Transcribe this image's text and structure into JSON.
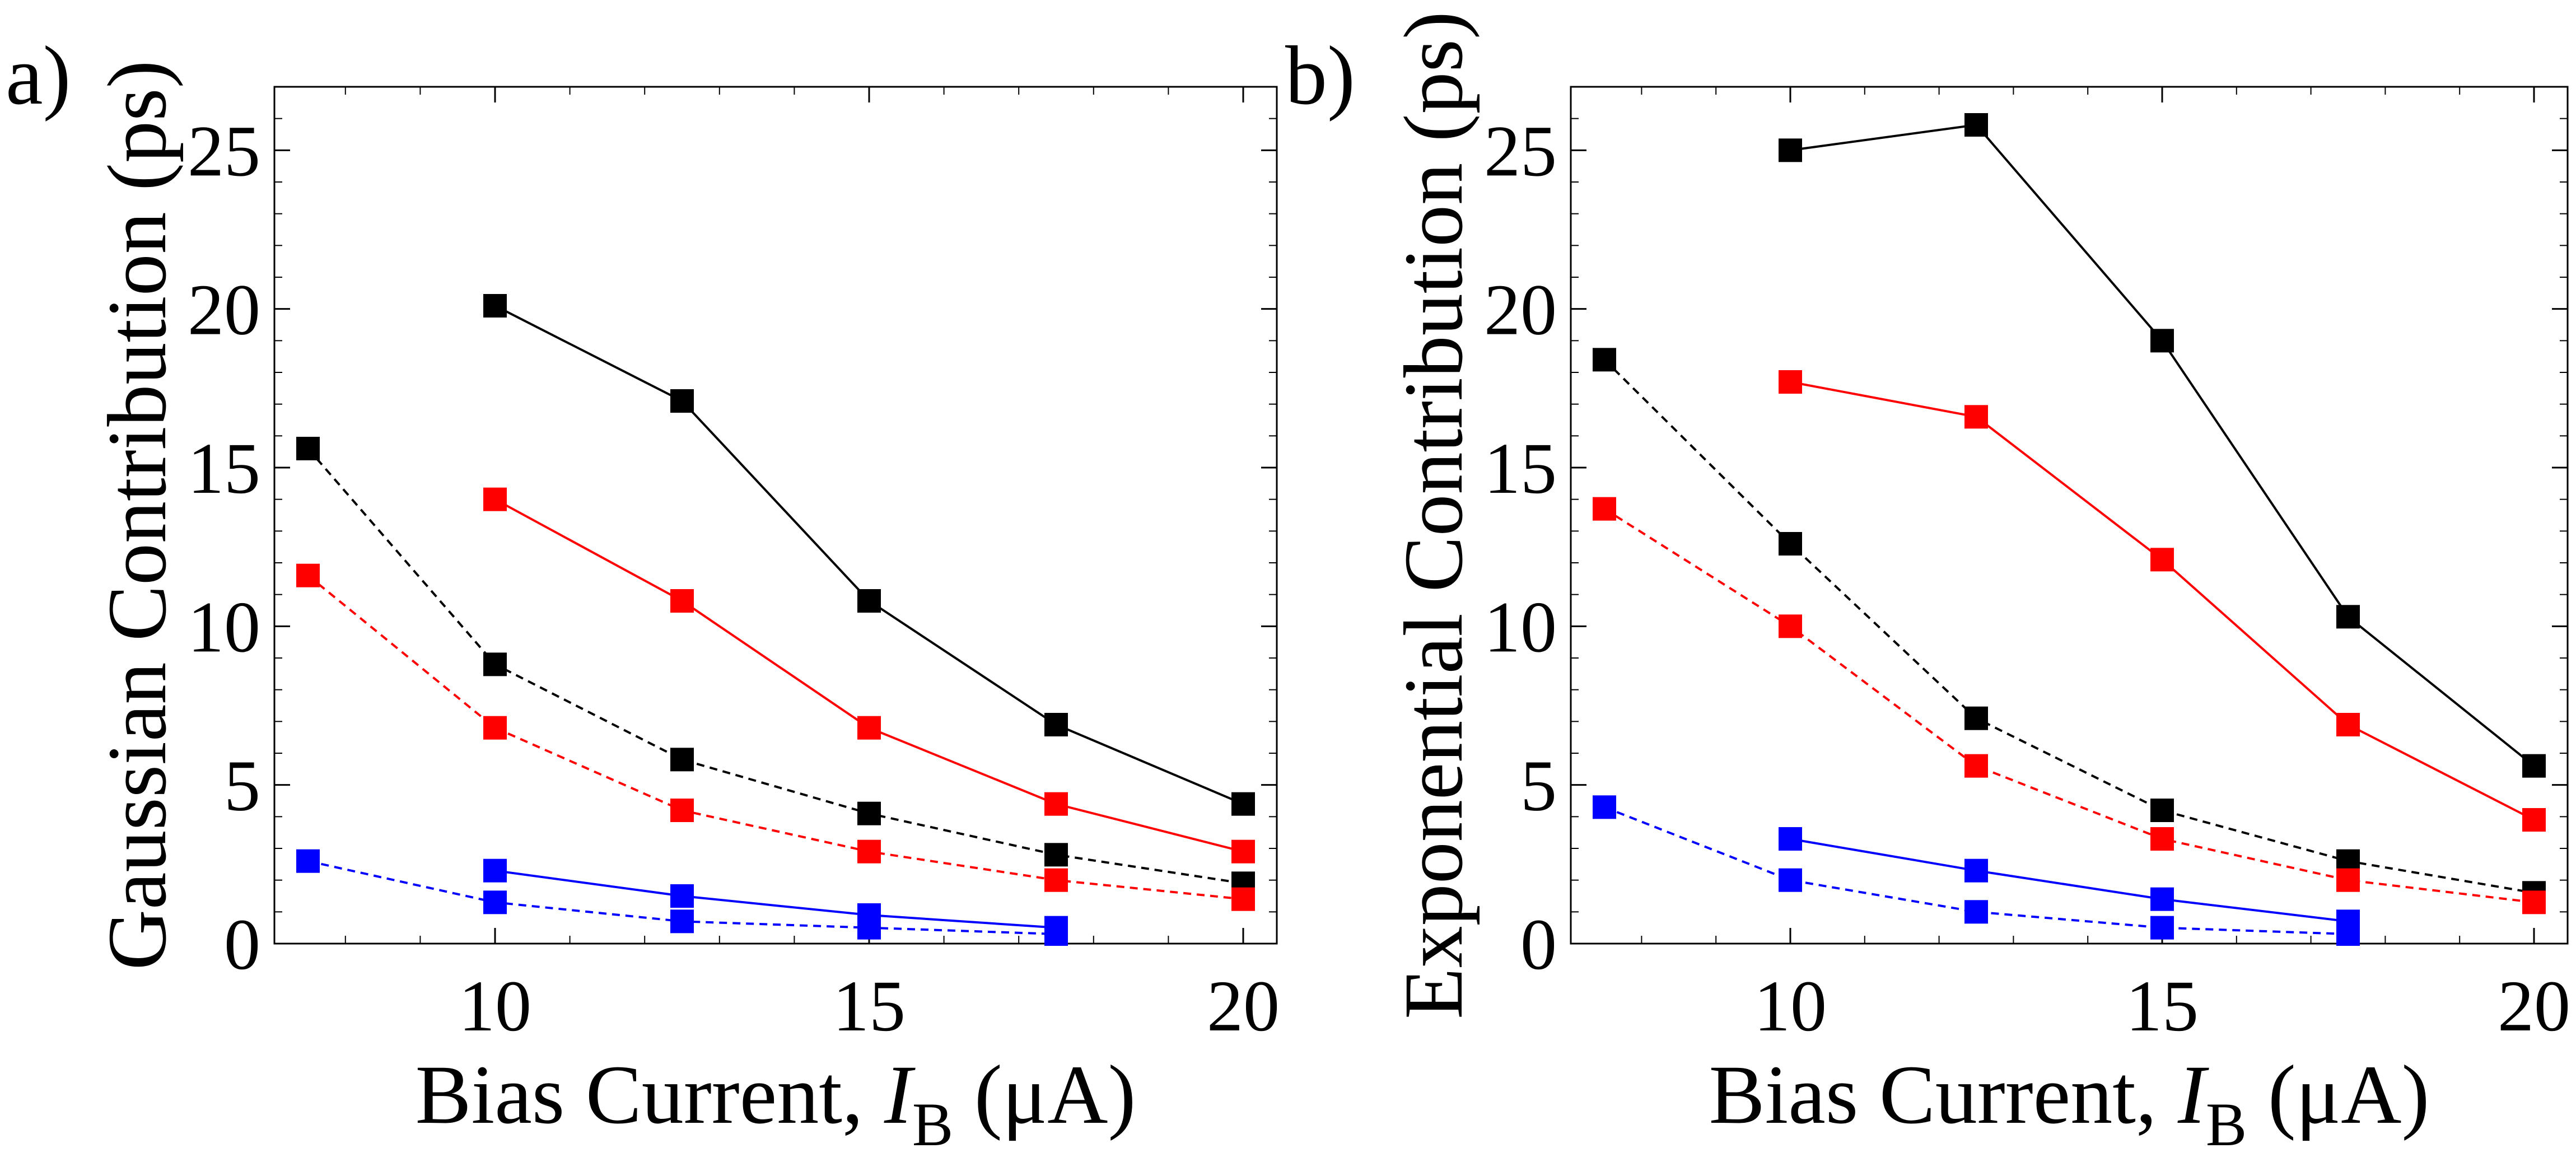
{
  "figure": {
    "panels": [
      {
        "label": "a)"
      },
      {
        "label": "b)"
      }
    ]
  },
  "chart_data": [
    {
      "type": "line",
      "panel_label": "a)",
      "xlabel": "Bias Current, I_B (μA)",
      "xlabel_parts": {
        "prefix": "Bias Current, ",
        "symbol": "I",
        "subscript": "B",
        "suffix": " (μA)"
      },
      "ylabel": "Gaussian Contribution (ps)",
      "xlim": [
        7.5,
        20
      ],
      "ylim": [
        0,
        27
      ],
      "xticks": [
        10,
        15,
        20
      ],
      "yticks": [
        0,
        5,
        10,
        15,
        20,
        25
      ],
      "grid": false,
      "series": [
        {
          "name": "black-solid",
          "color": "#000000",
          "dash": "solid",
          "x": [
            10,
            12.5,
            15,
            17.5,
            20
          ],
          "y": [
            20.1,
            17.1,
            10.8,
            6.9,
            4.4
          ]
        },
        {
          "name": "red-solid",
          "color": "#ff0000",
          "dash": "solid",
          "x": [
            10,
            12.5,
            15,
            17.5,
            20
          ],
          "y": [
            14.0,
            10.8,
            6.8,
            4.4,
            2.9
          ]
        },
        {
          "name": "black-dashed",
          "color": "#000000",
          "dash": "dashed",
          "x": [
            7.5,
            10,
            12.5,
            15,
            17.5,
            20
          ],
          "y": [
            15.6,
            8.8,
            5.8,
            4.1,
            2.8,
            1.9
          ]
        },
        {
          "name": "red-dashed",
          "color": "#ff0000",
          "dash": "dashed",
          "x": [
            7.5,
            10,
            12.5,
            15,
            17.5,
            20
          ],
          "y": [
            11.6,
            6.8,
            4.2,
            2.9,
            2.0,
            1.4
          ]
        },
        {
          "name": "blue-solid",
          "color": "#0000ff",
          "dash": "solid",
          "x": [
            10,
            12.5,
            15,
            17.5
          ],
          "y": [
            2.3,
            1.5,
            0.9,
            0.5
          ]
        },
        {
          "name": "blue-dashed",
          "color": "#0000ff",
          "dash": "dashed",
          "x": [
            7.5,
            10,
            12.5,
            15,
            17.5
          ],
          "y": [
            2.6,
            1.3,
            0.7,
            0.5,
            0.3
          ]
        }
      ]
    },
    {
      "type": "line",
      "panel_label": "b)",
      "xlabel": "Bias Current, I_B (μA)",
      "xlabel_parts": {
        "prefix": "Bias Current, ",
        "symbol": "I",
        "subscript": "B",
        "suffix": " (μA)"
      },
      "ylabel": "Exponential Contribution (ps)",
      "xlim": [
        7.5,
        20
      ],
      "ylim": [
        0,
        27
      ],
      "xticks": [
        10,
        15,
        20
      ],
      "yticks": [
        0,
        5,
        10,
        15,
        20,
        25
      ],
      "grid": false,
      "series": [
        {
          "name": "black-solid",
          "color": "#000000",
          "dash": "solid",
          "x": [
            10,
            12.5,
            15,
            17.5,
            20
          ],
          "y": [
            25.0,
            25.8,
            19.0,
            10.3,
            5.6
          ]
        },
        {
          "name": "red-solid",
          "color": "#ff0000",
          "dash": "solid",
          "x": [
            10,
            12.5,
            15,
            17.5,
            20
          ],
          "y": [
            17.7,
            16.6,
            12.1,
            6.9,
            3.9
          ]
        },
        {
          "name": "black-dashed",
          "color": "#000000",
          "dash": "dashed",
          "x": [
            7.5,
            10,
            12.5,
            15,
            17.5,
            20
          ],
          "y": [
            18.4,
            12.6,
            7.1,
            4.2,
            2.6,
            1.6
          ]
        },
        {
          "name": "red-dashed",
          "color": "#ff0000",
          "dash": "dashed",
          "x": [
            7.5,
            10,
            12.5,
            15,
            17.5,
            20
          ],
          "y": [
            13.7,
            10.0,
            5.6,
            3.3,
            2.0,
            1.3
          ]
        },
        {
          "name": "blue-solid",
          "color": "#0000ff",
          "dash": "solid",
          "x": [
            10,
            12.5,
            15,
            17.5
          ],
          "y": [
            3.3,
            2.3,
            1.4,
            0.7
          ]
        },
        {
          "name": "blue-dashed",
          "color": "#0000ff",
          "dash": "dashed",
          "x": [
            7.5,
            10,
            12.5,
            15,
            17.5
          ],
          "y": [
            4.3,
            2.0,
            1.0,
            0.5,
            0.3
          ]
        }
      ]
    }
  ]
}
